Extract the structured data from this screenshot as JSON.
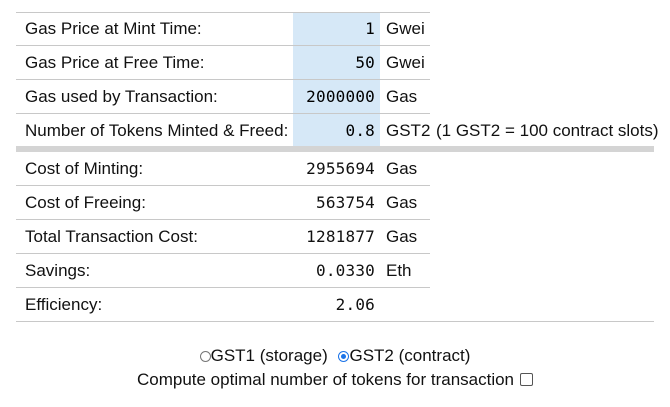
{
  "inputs": [
    {
      "label": "Gas Price at Mint Time:",
      "value": "1",
      "unit": "Gwei",
      "note": ""
    },
    {
      "label": "Gas Price at Free Time:",
      "value": "50",
      "unit": "Gwei",
      "note": ""
    },
    {
      "label": "Gas used by Transaction:",
      "value": "2000000",
      "unit": "Gas",
      "note": ""
    },
    {
      "label": "Number of Tokens Minted & Freed:",
      "value": "0.8",
      "unit": "GST2",
      "note": "(1 GST2 = 100 contract slots)"
    }
  ],
  "results": [
    {
      "label": "Cost of Minting:",
      "value": "2955694",
      "unit": "Gas"
    },
    {
      "label": "Cost of Freeing:",
      "value": "563754",
      "unit": "Gas"
    },
    {
      "label": "Total Transaction Cost:",
      "value": "1281877",
      "unit": "Gas"
    },
    {
      "label": "Savings:",
      "value": "0.0330",
      "unit": "Eth"
    },
    {
      "label": "Efficiency:",
      "value": "2.06",
      "unit": ""
    }
  ],
  "token_type": {
    "options": [
      {
        "label": "GST1 (storage)",
        "selected": false
      },
      {
        "label": "GST2 (contract)",
        "selected": true
      }
    ]
  },
  "optimal": {
    "label": "Compute optimal number of tokens for transaction",
    "checked": false
  },
  "colors": {
    "input_highlight": "#d6e8f7",
    "radio_accent": "#1a73e8"
  }
}
